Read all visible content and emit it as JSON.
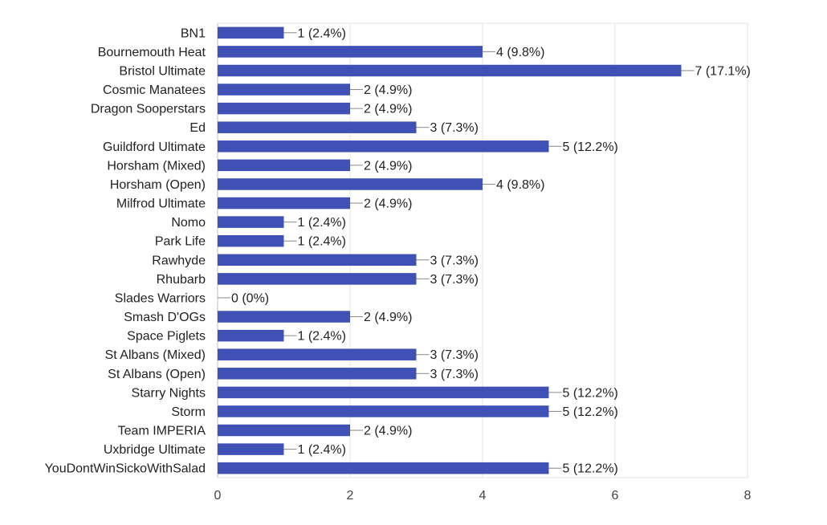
{
  "chart_data": {
    "type": "bar",
    "orientation": "horizontal",
    "categories": [
      "BN1",
      "Bournemouth Heat",
      "Bristol Ultimate",
      "Cosmic Manatees",
      "Dragon Sooperstars",
      "Ed",
      "Guildford Ultimate",
      "Horsham (Mixed)",
      "Horsham (Open)",
      "Milfrod Ultimate",
      "Nomo",
      "Park Life",
      "Rawhyde",
      "Rhubarb",
      "Slades Warriors",
      "Smash D'OGs",
      "Space Piglets",
      "St Albans (Mixed)",
      "St Albans (Open)",
      "Starry Nights",
      "Storm",
      "Team IMPERIA",
      "Uxbridge Ultimate",
      "YouDontWinSickoWithSalad"
    ],
    "values": [
      1,
      4,
      7,
      2,
      2,
      3,
      5,
      2,
      4,
      2,
      1,
      1,
      3,
      3,
      0,
      2,
      1,
      3,
      3,
      5,
      5,
      2,
      1,
      5
    ],
    "data_labels": [
      "1 (2.4%)",
      "4 (9.8%)",
      "7 (17.1%)",
      "2 (4.9%)",
      "2 (4.9%)",
      "3 (7.3%)",
      "5 (12.2%)",
      "2 (4.9%)",
      "4 (9.8%)",
      "2 (4.9%)",
      "1 (2.4%)",
      "1 (2.4%)",
      "3 (7.3%)",
      "3 (7.3%)",
      "0 (0%)",
      "2 (4.9%)",
      "1 (2.4%)",
      "3 (7.3%)",
      "3 (7.3%)",
      "5 (12.2%)",
      "5 (12.2%)",
      "2 (4.9%)",
      "1 (2.4%)",
      "5 (12.2%)"
    ],
    "x_ticks": [
      0,
      2,
      4,
      6,
      8
    ],
    "xlim": [
      0,
      8
    ],
    "title": "",
    "xlabel": "",
    "ylabel": "",
    "grid": true,
    "legend": "none",
    "colors": {
      "bar": "#3f51b5",
      "grid": "#e6e6e6",
      "axis": "#bdbdbd",
      "leader": "#888888"
    }
  }
}
